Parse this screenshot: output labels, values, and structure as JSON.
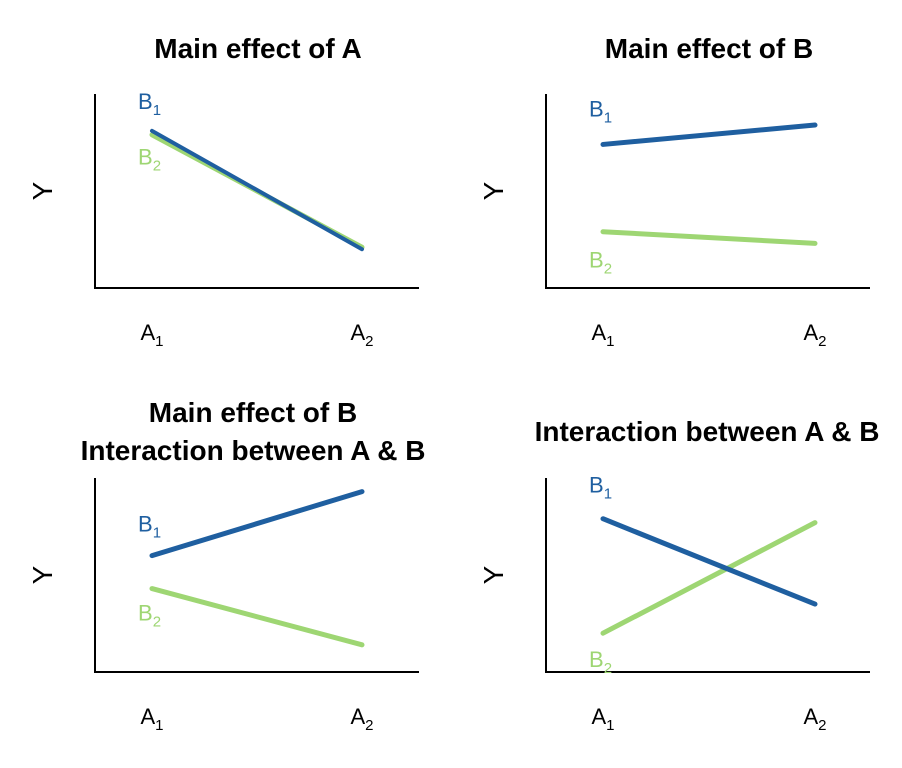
{
  "chart_data": [
    {
      "type": "line",
      "title": [
        "Main effect of A"
      ],
      "ylabel": "Y",
      "categories": [
        "A1",
        "A2"
      ],
      "ylim": [
        0,
        10
      ],
      "series": [
        {
          "name": "B1",
          "values": [
            8.1,
            2.0
          ],
          "color": "#1f5fa0"
        },
        {
          "name": "B2",
          "values": [
            7.9,
            2.1
          ],
          "color": "#9ed673"
        }
      ]
    },
    {
      "type": "line",
      "title": [
        "Main effect of B"
      ],
      "ylabel": "Y",
      "categories": [
        "A1",
        "A2"
      ],
      "ylim": [
        0,
        10
      ],
      "series": [
        {
          "name": "B1",
          "values": [
            7.4,
            8.4
          ],
          "color": "#1f5fa0"
        },
        {
          "name": "B2",
          "values": [
            2.9,
            2.3
          ],
          "color": "#9ed673"
        }
      ]
    },
    {
      "type": "line",
      "title": [
        "Main effect of B",
        "Interaction between A & B"
      ],
      "ylabel": "Y",
      "categories": [
        "A1",
        "A2"
      ],
      "ylim": [
        0,
        10
      ],
      "series": [
        {
          "name": "B1",
          "values": [
            6.0,
            9.3
          ],
          "color": "#1f5fa0"
        },
        {
          "name": "B2",
          "values": [
            4.3,
            1.4
          ],
          "color": "#9ed673"
        }
      ]
    },
    {
      "type": "line",
      "title": [
        "Interaction between A & B"
      ],
      "ylabel": "Y",
      "categories": [
        "A1",
        "A2"
      ],
      "ylim": [
        0,
        10
      ],
      "series": [
        {
          "name": "B1",
          "values": [
            7.9,
            3.5
          ],
          "color": "#1f5fa0"
        },
        {
          "name": "B2",
          "values": [
            2.0,
            7.7
          ],
          "color": "#9ed673"
        }
      ]
    }
  ]
}
